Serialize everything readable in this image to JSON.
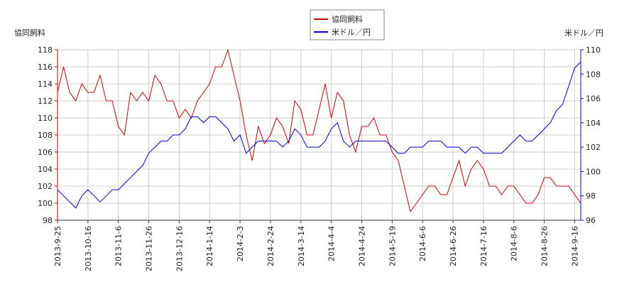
{
  "chart_data": {
    "type": "line",
    "y_label": "協同飼料",
    "y2_label": "米ドル／円",
    "categories": [
      "2013-9-25",
      null,
      null,
      null,
      null,
      "2013-10-16",
      null,
      null,
      null,
      null,
      "2013-11-6",
      null,
      null,
      null,
      null,
      "2013-11-26",
      null,
      null,
      null,
      null,
      "2013-12-16",
      null,
      null,
      null,
      null,
      "2014-1-14",
      null,
      null,
      null,
      null,
      "2014-2-3",
      null,
      null,
      null,
      null,
      "2014-2-24",
      null,
      null,
      null,
      null,
      "2014-3-14",
      null,
      null,
      null,
      null,
      "2014-4-4",
      null,
      null,
      null,
      null,
      "2014-4-24",
      null,
      null,
      null,
      null,
      "2014-5-19",
      null,
      null,
      null,
      null,
      "2014-6-6",
      null,
      null,
      null,
      null,
      "2014-6-26",
      null,
      null,
      null,
      null,
      "2014-7-16",
      null,
      null,
      null,
      null,
      "2014-8-6",
      null,
      null,
      null,
      null,
      "2014-8-26",
      null,
      null,
      null,
      null,
      "2014-9-16",
      null
    ],
    "series": [
      {
        "name": "協同飼料",
        "color": "#cc0000",
        "axis": "y",
        "values": [
          113,
          116,
          113,
          112,
          114,
          113,
          113,
          115,
          112,
          112,
          109,
          108,
          113,
          112,
          113,
          112,
          115,
          114,
          112,
          112,
          110,
          111,
          110,
          112,
          113,
          114,
          116,
          116,
          118,
          115,
          112,
          108,
          105,
          109,
          107,
          108,
          110,
          109,
          107,
          112,
          111,
          108,
          108,
          111,
          114,
          110,
          113,
          112,
          108,
          106,
          109,
          109,
          110,
          108,
          108,
          106,
          105,
          102,
          99,
          100,
          101,
          102,
          102,
          101,
          101,
          103,
          105,
          102,
          104,
          105,
          104,
          102,
          102,
          101,
          102,
          102,
          101,
          100,
          100,
          101,
          103,
          103,
          102,
          102,
          102,
          101,
          100
        ]
      },
      {
        "name": "米ドル／円",
        "color": "#0000cc",
        "axis": "y2",
        "values": [
          98.5,
          98,
          97.5,
          97,
          98,
          98.5,
          98,
          97.5,
          98,
          98.5,
          98.5,
          99,
          99.5,
          100,
          100.5,
          101.5,
          102,
          102.5,
          102.5,
          103,
          103,
          103.5,
          104.5,
          104.5,
          104,
          104.5,
          104.5,
          104,
          103.5,
          102.5,
          103,
          101.5,
          102,
          102.5,
          102.5,
          102.5,
          102.5,
          102,
          102.5,
          103.5,
          103,
          102,
          102,
          102,
          102.5,
          103.5,
          104,
          102.5,
          102,
          102.5,
          102.5,
          102.5,
          102.5,
          102.5,
          102.5,
          102,
          101.5,
          101.5,
          102,
          102,
          102,
          102.5,
          102.5,
          102.5,
          102,
          102,
          102,
          101.5,
          102,
          102,
          101.5,
          101.5,
          101.5,
          101.5,
          102,
          102.5,
          103,
          102.5,
          102.5,
          103,
          103.5,
          104,
          105,
          105.5,
          107,
          108.5,
          109
        ]
      }
    ],
    "ylim": [
      98,
      118
    ],
    "yticks": [
      98,
      100,
      102,
      104,
      106,
      108,
      110,
      112,
      114,
      116,
      118
    ],
    "y2lim": [
      96,
      110
    ],
    "y2ticks": [
      96,
      98,
      100,
      102,
      104,
      106,
      108,
      110
    ],
    "grid": true,
    "legend": "top"
  }
}
